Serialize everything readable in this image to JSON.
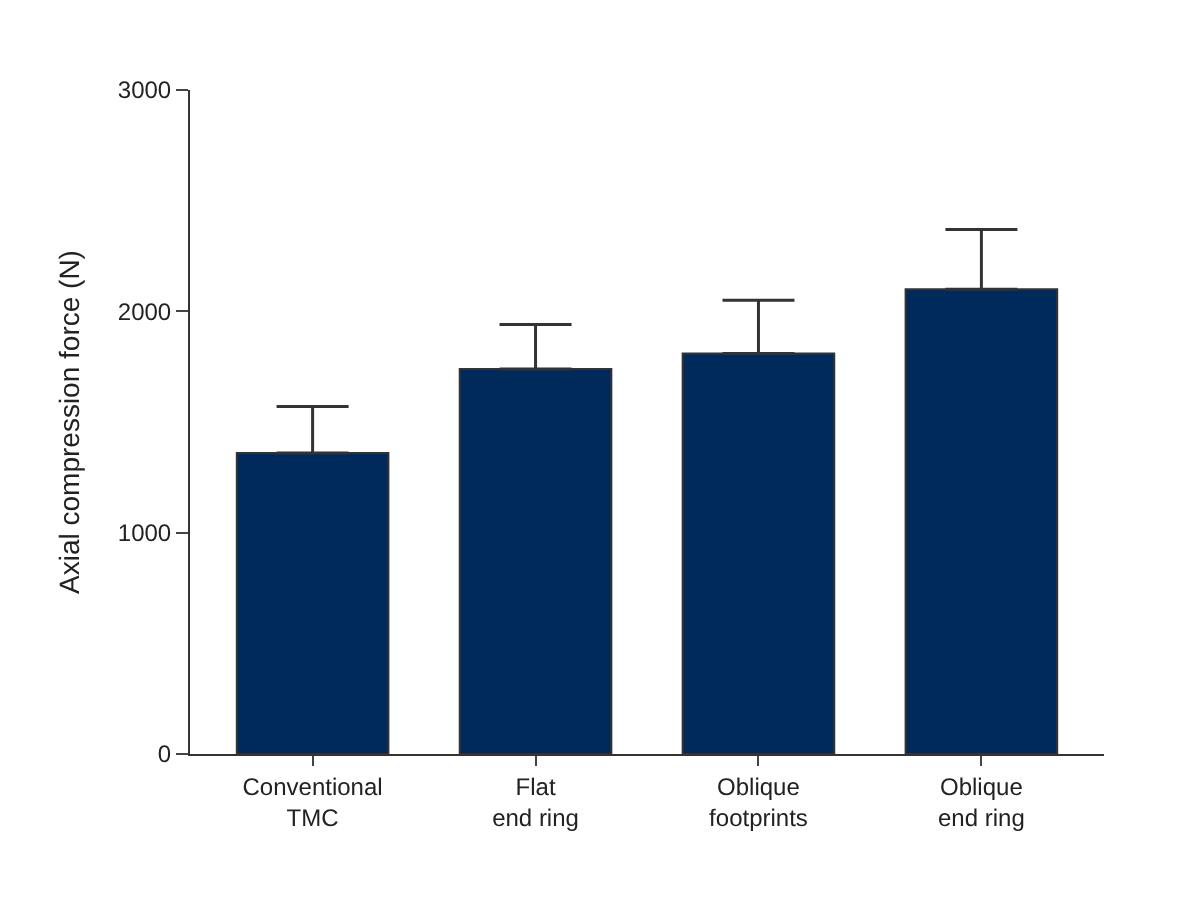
{
  "chart_data": {
    "type": "bar",
    "ylabel": "Axial compression force (N)",
    "categories": [
      "Conventional\nTMC",
      "Flat\nend ring",
      "Oblique\nfootprints",
      "Oblique\nend ring"
    ],
    "values": [
      1360,
      1740,
      1810,
      2100
    ],
    "errors": [
      [
        1360,
        1570
      ],
      [
        1740,
        1940
      ],
      [
        1810,
        2050
      ],
      [
        2100,
        2370
      ]
    ],
    "color": "#002a5c",
    "ylim": [
      0,
      3000
    ],
    "yticks": [
      0,
      1000,
      2000,
      3000
    ]
  }
}
